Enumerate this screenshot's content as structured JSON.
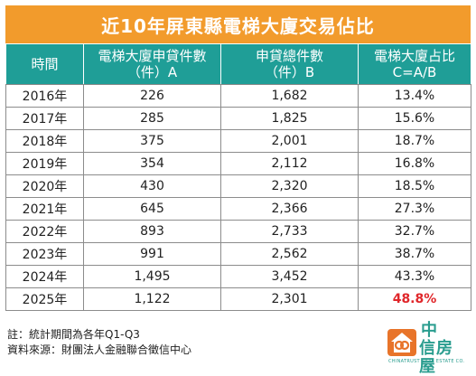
{
  "title": "近10年屏東縣電梯大廈交易佔比",
  "table": {
    "headers": [
      {
        "line1": "時間",
        "line2": ""
      },
      {
        "line1": "電梯大廈申貸件數",
        "line2": "（件）A"
      },
      {
        "line1": "申貸總件數",
        "line2": "（件）B"
      },
      {
        "line1": "電梯大廈占比",
        "line2": "C=A/B"
      }
    ],
    "rows": [
      {
        "year": "2016年",
        "a": "226",
        "b": "1,682",
        "c": "13.4%"
      },
      {
        "year": "2017年",
        "a": "285",
        "b": "1,825",
        "c": "15.6%"
      },
      {
        "year": "2018年",
        "a": "375",
        "b": "2,001",
        "c": "18.7%"
      },
      {
        "year": "2019年",
        "a": "354",
        "b": "2,112",
        "c": "16.8%"
      },
      {
        "year": "2020年",
        "a": "430",
        "b": "2,320",
        "c": "18.5%"
      },
      {
        "year": "2021年",
        "a": "645",
        "b": "2,366",
        "c": "27.3%"
      },
      {
        "year": "2022年",
        "a": "893",
        "b": "2,733",
        "c": "32.7%"
      },
      {
        "year": "2023年",
        "a": "991",
        "b": "2,562",
        "c": "38.7%"
      },
      {
        "year": "2024年",
        "a": "1,495",
        "b": "3,452",
        "c": "43.3%"
      },
      {
        "year": "2025年",
        "a": "1,122",
        "b": "2,301",
        "c": "48.8%"
      }
    ],
    "highlight_color": "#e0262a"
  },
  "footnotes": {
    "note": "註：統計期間為各年Q1-Q3",
    "source": "資料來源：財團法人金融聯合徵信中心"
  },
  "logo": {
    "line1": "中",
    "line2": "信房屋",
    "english": "CHINATRUST REAL ESTATE CO."
  },
  "colors": {
    "title_bg": "#f29b2c",
    "header_bg": "#1f9e97",
    "logo_green": "#2a9d8f",
    "logo_orange": "#e8742a"
  }
}
